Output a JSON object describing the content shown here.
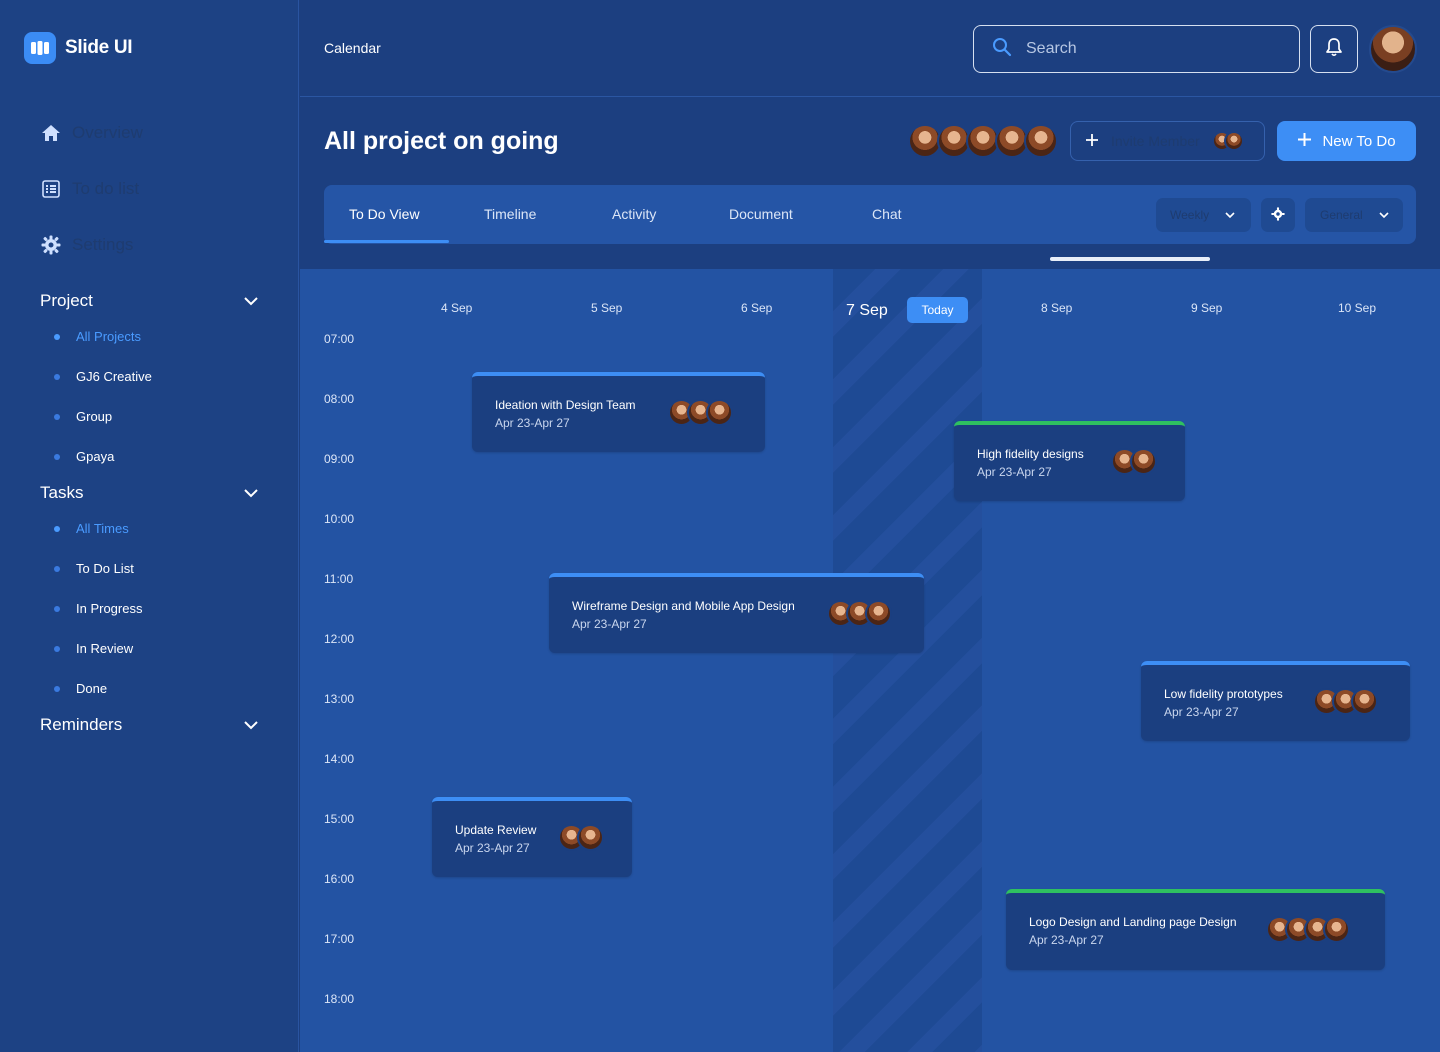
{
  "app": {
    "name": "Slide UI"
  },
  "sidebar": {
    "nav": [
      {
        "label": "Overview",
        "icon": "home-icon"
      },
      {
        "label": "To do list",
        "icon": "list-icon"
      },
      {
        "label": "Settings",
        "icon": "gear-icon"
      }
    ],
    "sections": [
      {
        "title": "Project",
        "items": [
          "All Projects",
          "GJ6 Creative",
          "Group",
          "Gpaya"
        ],
        "active": 0
      },
      {
        "title": "Tasks",
        "items": [
          "All Times",
          "To Do List",
          "In Progress",
          "In Review",
          "Done"
        ],
        "active": 0
      },
      {
        "title": "Reminders",
        "items": []
      }
    ]
  },
  "topbar": {
    "breadcrumb": "Calendar",
    "search_placeholder": "Search"
  },
  "header": {
    "title": "All project on going",
    "invite_label": "Invite Member",
    "new_todo_label": "New To Do"
  },
  "tabs": {
    "items": [
      "To Do View",
      "Timeline",
      "Activity",
      "Document",
      "Chat"
    ],
    "active": 0,
    "view_select": "Weekly",
    "group_select": "General"
  },
  "calendar": {
    "days": [
      "4 Sep",
      "5 Sep",
      "6 Sep",
      "7 Sep",
      "8 Sep",
      "9 Sep",
      "10 Sep"
    ],
    "today_label": "Today",
    "hours": [
      "07:00",
      "08:00",
      "09:00",
      "10:00",
      "11:00",
      "12:00",
      "13:00",
      "14:00",
      "15:00",
      "16:00",
      "17:00",
      "18:00"
    ],
    "events": [
      {
        "title": "Ideation with Design Team",
        "date": "Apr 23-Apr 27",
        "color": "#3d8ef5",
        "avatars": 3
      },
      {
        "title": "High fidelity designs",
        "date": "Apr 23-Apr 27",
        "color": "#2fc160",
        "avatars": 2
      },
      {
        "title": "Wireframe Design and Mobile App Design",
        "date": "Apr 23-Apr 27",
        "color": "#3d8ef5",
        "avatars": 3
      },
      {
        "title": "Low fidelity prototypes",
        "date": "Apr 23-Apr 27",
        "color": "#3d8ef5",
        "avatars": 3
      },
      {
        "title": "Update Review",
        "date": "Apr 23-Apr 27",
        "color": "#3d8ef5",
        "avatars": 2
      },
      {
        "title": "Logo Design and Landing page Design",
        "date": "Apr 23-Apr 27",
        "color": "#2fc160",
        "avatars": 4
      }
    ]
  },
  "colors": {
    "accent": "#3d8ef5",
    "sidebar": "#1d4284",
    "calendar": "#2353a3",
    "green": "#2fc160"
  }
}
